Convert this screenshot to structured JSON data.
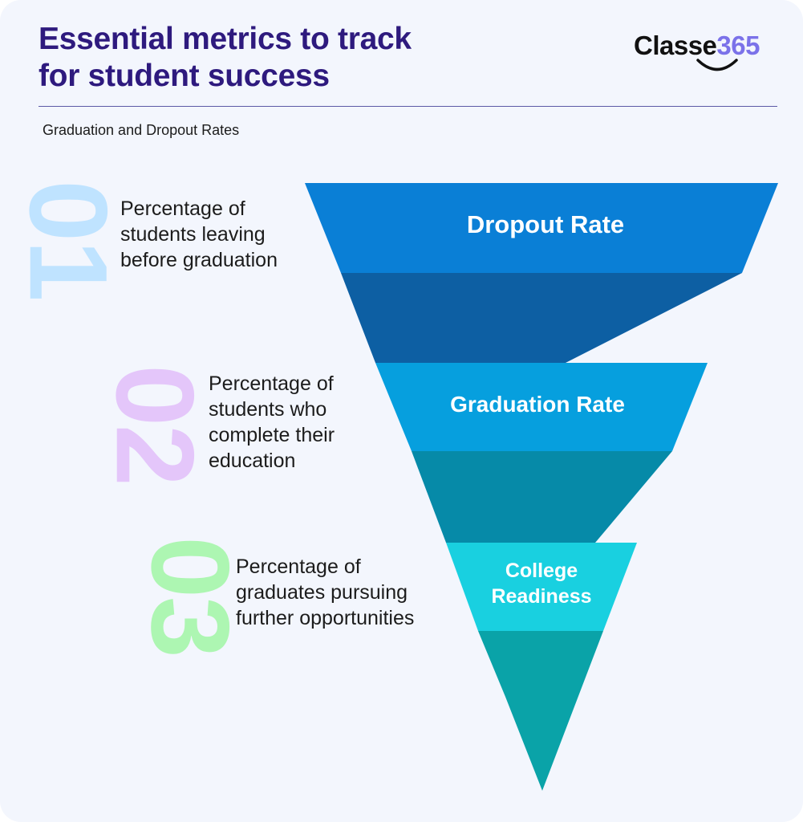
{
  "header": {
    "title": "Essential metrics to track\nfor student success",
    "subtitle": "Graduation and Dropout Rates"
  },
  "logo": {
    "wordmark_prefix": "Classe",
    "wordmark_digits": "365",
    "accent_color": "#7b72e9"
  },
  "colors": {
    "title": "#2e1a7e",
    "background": "#f3f6fd",
    "stage_1": "#0a7fd6",
    "stage_2": "#069fde",
    "stage_3": "#19d0e0",
    "connector_1": "#0d5fa3",
    "connector_2": "#068aa8",
    "connector_3": "#0aa3a8"
  },
  "items": [
    {
      "number": "01",
      "number_color": "#bfe3ff",
      "description": "Percentage of\nstudents leaving\nbefore graduation",
      "stage_label": "Dropout Rate"
    },
    {
      "number": "02",
      "number_color": "#e4c6fa",
      "description": "Percentage of\nstudents who\ncomplete their\neducation",
      "stage_label": "Graduation Rate"
    },
    {
      "number": "03",
      "number_color": "#adf6b2",
      "description": "Percentage of\ngraduates pursuing\nfurther opportunities",
      "stage_label": "College\nReadiness"
    }
  ]
}
